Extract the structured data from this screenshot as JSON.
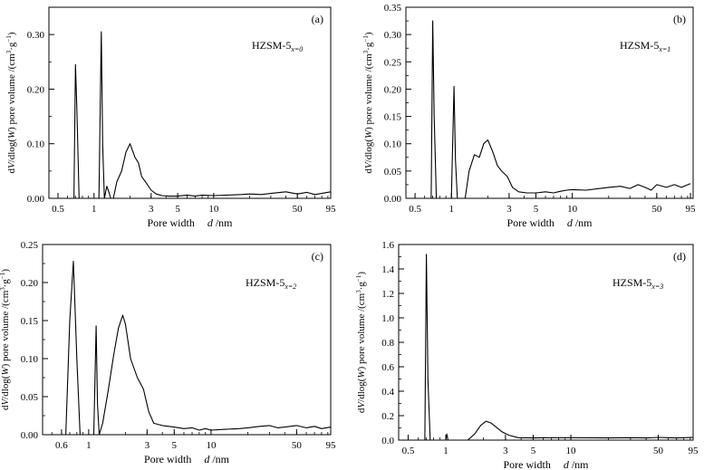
{
  "figure": {
    "shared_xlabel": "Pore width",
    "shared_xvar": "d",
    "shared_xunit": " /nm",
    "ylabel_prefix": "d",
    "ylabel_V": "V",
    "ylabel_mid": "/dlog(",
    "ylabel_W": "W",
    "ylabel_suffix": ") pore volume /(cm",
    "ylabel_sup3": "3",
    "ylabel_dot": "·g",
    "ylabel_supm1": "−1",
    "ylabel_end": ")"
  },
  "chart_data": [
    {
      "type": "line",
      "panel_label": "(a)",
      "sample": "HZSM-5",
      "sample_sub": "x=0",
      "xlabel": "Pore width d /nm",
      "ylabel": "dV/dlog(W) pore volume /(cm3·g−1)",
      "x_scale": "log",
      "xlim": [
        0.42,
        95
      ],
      "ylim": [
        0,
        0.35
      ],
      "xticks": [
        0.5,
        1,
        3,
        5,
        10,
        50,
        95
      ],
      "xtick_labels": [
        "0.5",
        "1",
        "3",
        "5",
        "10",
        "50",
        "95"
      ],
      "yticks": [
        0,
        0.1,
        0.2,
        0.3
      ],
      "ytick_labels": [
        "0.00",
        "0.10",
        "0.20",
        "0.30"
      ],
      "legend": "none",
      "grid": false,
      "series": [
        {
          "x": [
            0.68,
            0.7,
            0.72,
            0.75,
            1.1,
            1.15,
            1.18,
            1.22,
            1.28,
            1.33,
            1.38,
            1.45,
            1.55,
            1.7,
            1.85,
            2.0,
            2.2,
            2.35,
            2.5,
            2.7,
            3.0,
            3.3,
            3.7,
            4.2,
            5,
            6,
            7,
            8,
            10,
            13,
            17,
            20,
            25,
            30,
            40,
            50,
            60,
            70,
            80,
            95
          ],
          "y": [
            0.0,
            0.245,
            0.16,
            0.0,
            0.0,
            0.305,
            0.1,
            0.0,
            0.022,
            0.012,
            0.0,
            0.0,
            0.03,
            0.05,
            0.085,
            0.1,
            0.075,
            0.065,
            0.04,
            0.03,
            0.015,
            0.008,
            0.005,
            0.004,
            0.004,
            0.006,
            0.004,
            0.006,
            0.005,
            0.006,
            0.007,
            0.008,
            0.007,
            0.009,
            0.012,
            0.008,
            0.011,
            0.007,
            0.009,
            0.012
          ]
        }
      ]
    },
    {
      "type": "line",
      "panel_label": "(b)",
      "sample": "HZSM-5",
      "sample_sub": "x=1",
      "xlabel": "Pore width d /nm",
      "ylabel": "dV/dlog(W) pore volume /(cm3·g−1)",
      "x_scale": "log",
      "xlim": [
        0.42,
        100
      ],
      "ylim": [
        0,
        0.35
      ],
      "xticks": [
        0.5,
        1,
        3,
        5,
        10,
        50,
        95
      ],
      "xtick_labels": [
        "0.5",
        "1",
        "3",
        "5",
        "10",
        "50",
        "95"
      ],
      "yticks": [
        0,
        0.05,
        0.1,
        0.15,
        0.2,
        0.25,
        0.3,
        0.35
      ],
      "ytick_labels": [
        "0.00",
        "0.05",
        "0.10",
        "0.15",
        "0.20",
        "0.25",
        "0.30",
        "0.35"
      ],
      "legend": "none",
      "grid": false,
      "series": [
        {
          "x": [
            0.68,
            0.7,
            0.72,
            0.75,
            1.0,
            1.05,
            1.08,
            1.12,
            1.3,
            1.4,
            1.55,
            1.7,
            1.85,
            2.0,
            2.2,
            2.4,
            2.6,
            2.9,
            3.2,
            3.6,
            4.2,
            5,
            6,
            7,
            8,
            9,
            10,
            13,
            17,
            20,
            25,
            30,
            35,
            40,
            45,
            50,
            60,
            70,
            80,
            95
          ],
          "y": [
            0.0,
            0.325,
            0.15,
            0.0,
            0.0,
            0.205,
            0.07,
            0.0,
            0.0,
            0.05,
            0.08,
            0.075,
            0.1,
            0.107,
            0.085,
            0.06,
            0.05,
            0.04,
            0.02,
            0.012,
            0.01,
            0.01,
            0.012,
            0.01,
            0.013,
            0.015,
            0.016,
            0.015,
            0.018,
            0.02,
            0.022,
            0.018,
            0.025,
            0.02,
            0.015,
            0.025,
            0.02,
            0.025,
            0.02,
            0.027
          ]
        }
      ]
    },
    {
      "type": "line",
      "panel_label": "(c)",
      "sample": "HZSM-5",
      "sample_sub": "x=2",
      "xlabel": "Pore width d /nm",
      "ylabel": "dV/dlog(W) pore volume /(cm3·g−1)",
      "x_scale": "log",
      "xlim": [
        0.42,
        95
      ],
      "ylim": [
        0,
        0.25
      ],
      "xticks": [
        0.6,
        1,
        3,
        5,
        10,
        50,
        95
      ],
      "xtick_labels": [
        "0.6",
        "1",
        "3",
        "5",
        "10",
        "50",
        "95"
      ],
      "yticks": [
        0,
        0.05,
        0.1,
        0.15,
        0.2,
        0.25
      ],
      "ytick_labels": [
        "0.00",
        "0.05",
        "0.10",
        "0.15",
        "0.20",
        "0.25"
      ],
      "legend": "none",
      "grid": false,
      "series": [
        {
          "x": [
            0.65,
            0.7,
            0.75,
            0.8,
            0.85,
            1.1,
            1.15,
            1.18,
            1.22,
            1.3,
            1.45,
            1.6,
            1.75,
            1.9,
            2.0,
            2.2,
            2.5,
            2.8,
            3.1,
            3.4,
            4.0,
            5,
            6,
            7,
            8,
            9,
            10,
            13,
            17,
            20,
            25,
            30,
            35,
            40,
            50,
            60,
            70,
            80,
            95
          ],
          "y": [
            0.0,
            0.15,
            0.228,
            0.1,
            0.0,
            0.0,
            0.143,
            0.04,
            0.0,
            0.015,
            0.06,
            0.105,
            0.14,
            0.157,
            0.145,
            0.1,
            0.075,
            0.06,
            0.03,
            0.015,
            0.012,
            0.01,
            0.008,
            0.009,
            0.006,
            0.008,
            0.006,
            0.007,
            0.008,
            0.009,
            0.011,
            0.012,
            0.009,
            0.01,
            0.012,
            0.009,
            0.011,
            0.008,
            0.01
          ]
        }
      ]
    },
    {
      "type": "line",
      "panel_label": "(d)",
      "sample": "HZSM-5",
      "sample_sub": "x=3",
      "xlabel": "Pore width d /nm",
      "ylabel": "dV/dlog(W) pore volume /(cm3·g−1)",
      "x_scale": "log",
      "xlim": [
        0.42,
        95
      ],
      "ylim": [
        0,
        1.6
      ],
      "xticks": [
        0.5,
        1,
        3,
        5,
        10,
        50,
        95
      ],
      "xtick_labels": [
        "0.5",
        "1",
        "3",
        "5",
        "10",
        "50",
        "95"
      ],
      "yticks": [
        0,
        0.2,
        0.4,
        0.6,
        0.8,
        1.0,
        1.2,
        1.4,
        1.6
      ],
      "ytick_labels": [
        "0.0",
        "0.2",
        "0.4",
        "0.6",
        "0.8",
        "1.0",
        "1.2",
        "1.4",
        "1.6"
      ],
      "legend": "none",
      "grid": false,
      "series": [
        {
          "x": [
            0.68,
            0.7,
            0.72,
            0.75,
            1.0,
            1.02,
            1.04,
            1.5,
            1.7,
            1.9,
            2.1,
            2.3,
            2.5,
            2.8,
            3.2,
            3.8,
            5,
            7,
            10,
            20,
            30,
            40,
            50,
            60,
            70,
            80,
            95
          ],
          "y": [
            0.0,
            1.52,
            0.5,
            0.0,
            0.0,
            0.05,
            0.0,
            0.0,
            0.05,
            0.12,
            0.155,
            0.14,
            0.11,
            0.07,
            0.04,
            0.02,
            0.018,
            0.02,
            0.02,
            0.018,
            0.02,
            0.018,
            0.022,
            0.02,
            0.018,
            0.02,
            0.022
          ]
        }
      ]
    }
  ]
}
